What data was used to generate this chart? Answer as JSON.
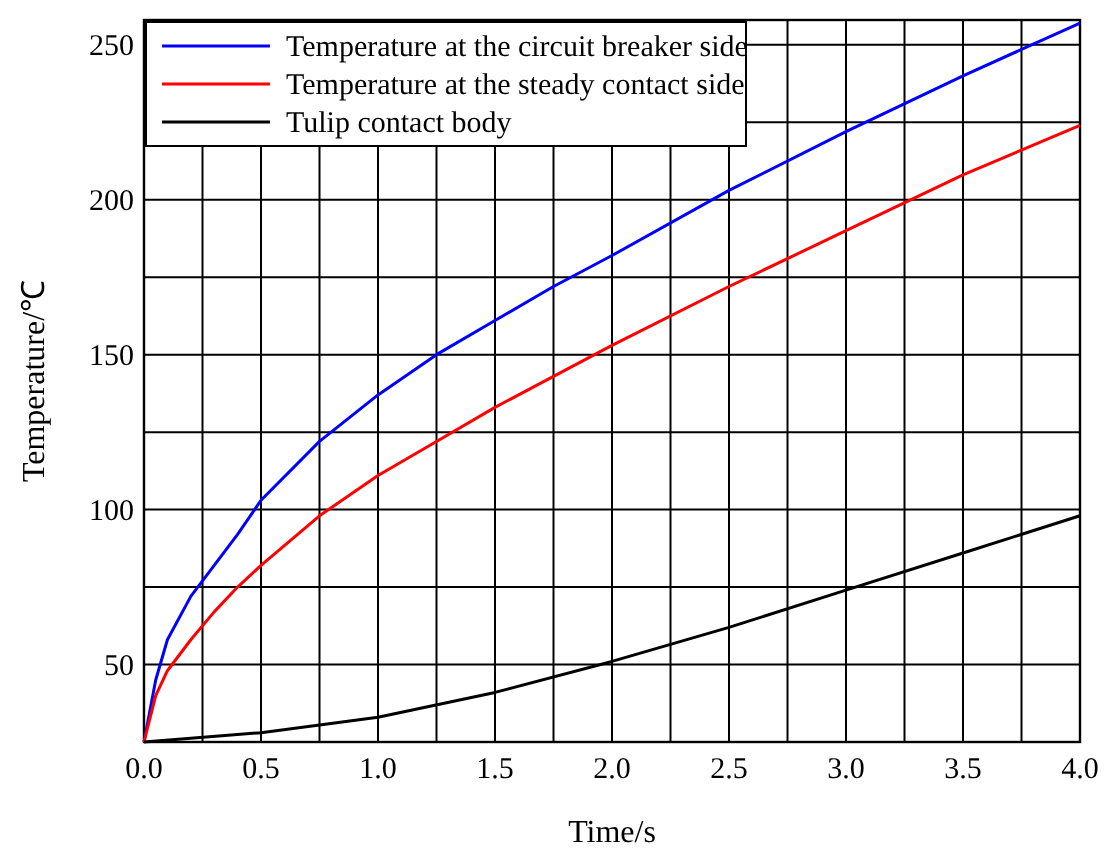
{
  "chart_data": {
    "type": "line",
    "xlabel": "Time/s",
    "ylabel": "Temperature/℃",
    "xlim": [
      0,
      4
    ],
    "ylim": [
      25,
      258
    ],
    "xticks": [
      {
        "value": 0,
        "label": "0.0"
      },
      {
        "value": 0.25,
        "label": null
      },
      {
        "value": 0.5,
        "label": "0.5"
      },
      {
        "value": 0.75,
        "label": null
      },
      {
        "value": 1,
        "label": "1.0"
      },
      {
        "value": 1.25,
        "label": null
      },
      {
        "value": 1.5,
        "label": "1.5"
      },
      {
        "value": 1.75,
        "label": null
      },
      {
        "value": 2,
        "label": "2.0"
      },
      {
        "value": 2.25,
        "label": null
      },
      {
        "value": 2.5,
        "label": "2.5"
      },
      {
        "value": 2.75,
        "label": null
      },
      {
        "value": 3,
        "label": "3.0"
      },
      {
        "value": 3.25,
        "label": null
      },
      {
        "value": 3.5,
        "label": "3.5"
      },
      {
        "value": 3.75,
        "label": null
      },
      {
        "value": 4,
        "label": "4.0"
      }
    ],
    "yticks": [
      {
        "value": 50,
        "label": "50"
      },
      {
        "value": 75,
        "label": null
      },
      100,
      {
        "value": 125,
        "label": null
      },
      150,
      {
        "value": 175,
        "label": null
      },
      200,
      {
        "value": 225,
        "label": null
      },
      250
    ],
    "grid": true,
    "legend": "top left",
    "line_style": "solid",
    "marker": "none",
    "series": [
      {
        "name": "Temperature at the circuit breaker side",
        "color": "#0000ff",
        "x": [
          0,
          0.05,
          0.1,
          0.2,
          0.3,
          0.4,
          0.5,
          0.75,
          1,
          1.25,
          1.5,
          1.75,
          2,
          2.5,
          3,
          3.5,
          4
        ],
        "values": [
          25,
          45,
          58,
          72,
          82,
          92,
          103,
          122,
          137,
          150,
          161,
          172,
          182,
          203,
          222,
          240,
          257
        ]
      },
      {
        "name": "Temperature at the steady contact side",
        "color": "#ff0000",
        "x": [
          0,
          0.05,
          0.1,
          0.2,
          0.3,
          0.4,
          0.5,
          0.75,
          1,
          1.25,
          1.5,
          1.75,
          2,
          2.5,
          3,
          3.5,
          4
        ],
        "values": [
          25,
          40,
          48,
          58,
          67,
          75,
          82,
          98,
          111,
          122,
          133,
          143,
          153,
          172,
          190,
          208,
          224
        ]
      },
      {
        "name": "Tulip contact body",
        "color": "#000000",
        "x": [
          0,
          0.5,
          1,
          1.5,
          2,
          2.5,
          3,
          3.5,
          4
        ],
        "values": [
          25,
          28,
          33,
          41,
          51,
          62,
          74,
          86,
          98
        ]
      }
    ]
  }
}
